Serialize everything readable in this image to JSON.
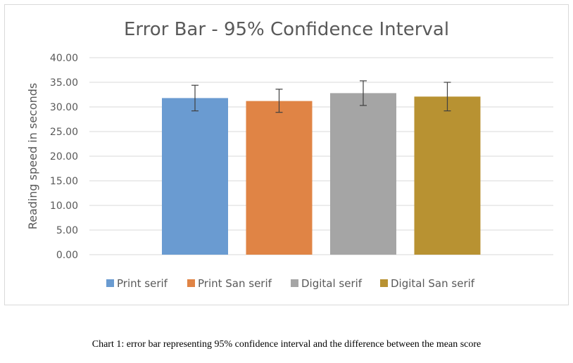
{
  "chart_data": {
    "type": "bar",
    "title": "Error Bar - 95% Confidence Interval",
    "xlabel": "",
    "ylabel": "Reading speed in seconds",
    "ylim": [
      0,
      40
    ],
    "yticks": [
      "0.00",
      "5.00",
      "10.00",
      "15.00",
      "20.00",
      "25.00",
      "30.00",
      "35.00",
      "40.00"
    ],
    "grid": true,
    "legend_position": "bottom",
    "series": [
      {
        "name": "Print serif",
        "value": 31.8,
        "error_low": 29.2,
        "error_high": 34.4,
        "color": "#6a9bd1"
      },
      {
        "name": "Print San serif",
        "value": 31.2,
        "error_low": 28.9,
        "error_high": 33.6,
        "color": "#e08445"
      },
      {
        "name": "Digital serif",
        "value": 32.8,
        "error_low": 30.3,
        "error_high": 35.3,
        "color": "#a5a5a5"
      },
      {
        "name": "Digital San serif",
        "value": 32.1,
        "error_low": 29.2,
        "error_high": 35.0,
        "color": "#b89232"
      }
    ]
  },
  "caption": "Chart 1: error bar representing 95% confidence interval and the difference between the mean score"
}
